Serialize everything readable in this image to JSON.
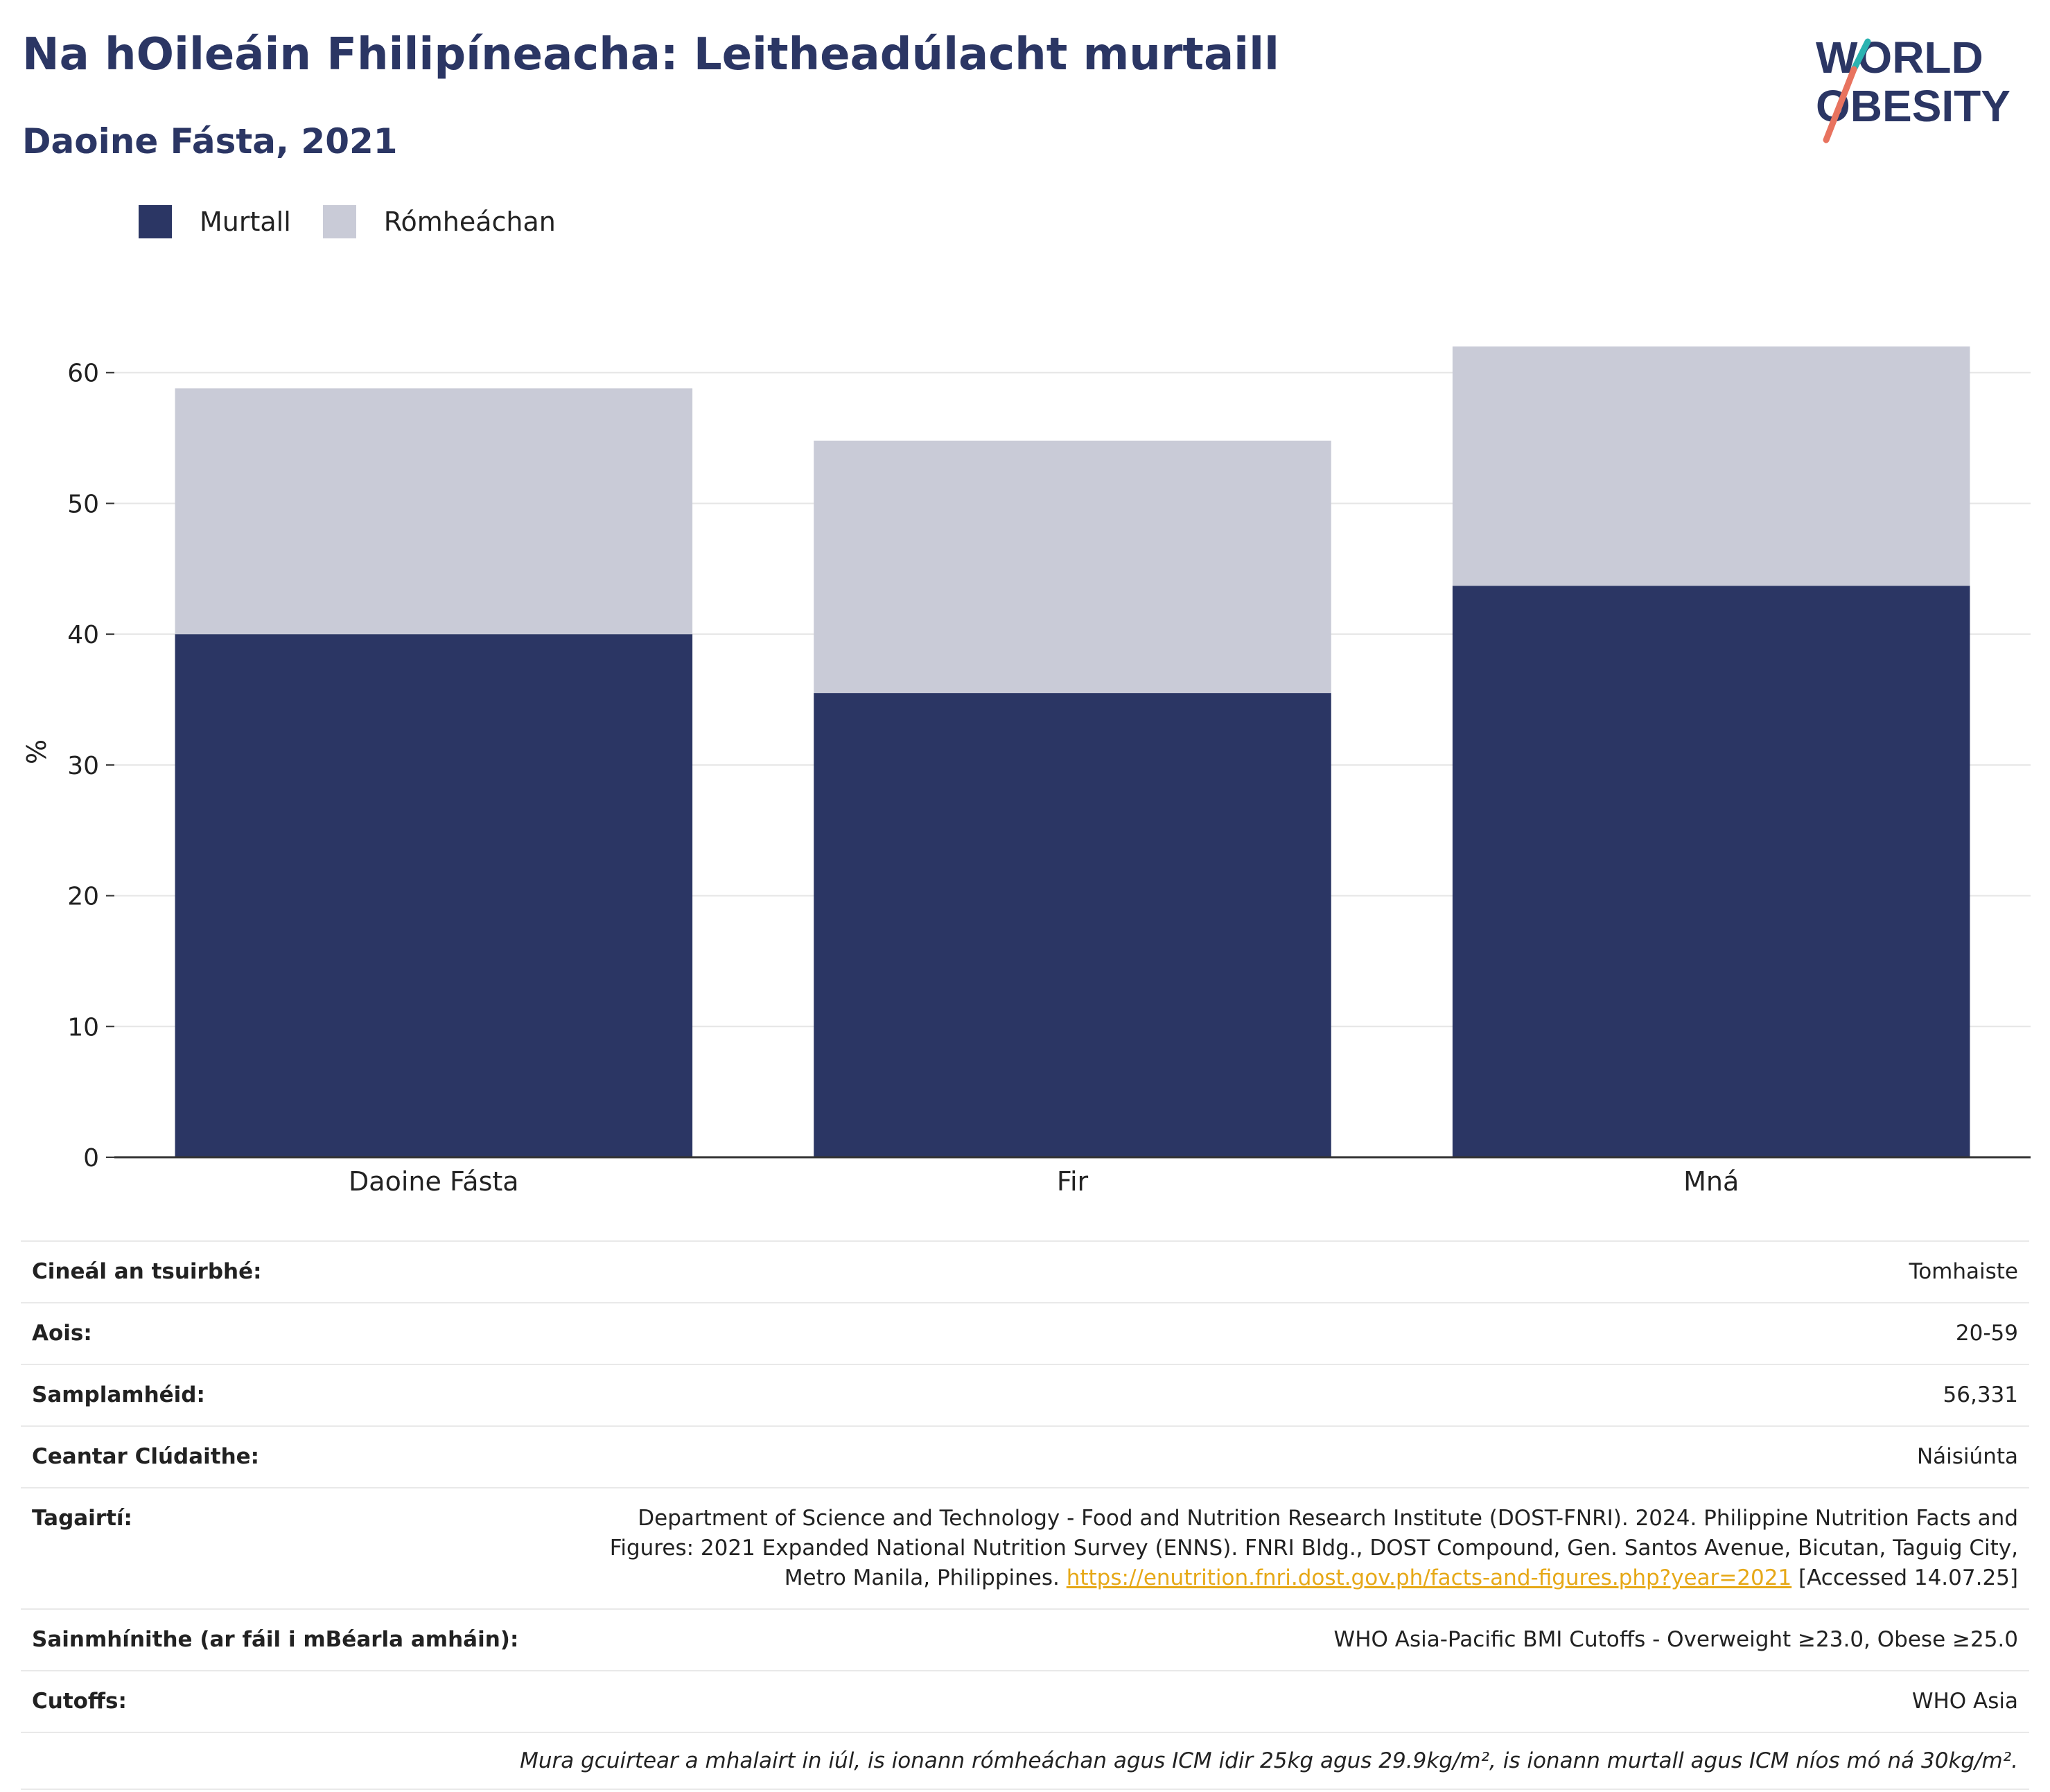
{
  "header": {
    "title": "Na hOileáin Fhilipíneacha: Leitheadúlacht murtaill",
    "subtitle": "Daoine Fásta, 2021"
  },
  "logo": {
    "line1": "WORLD",
    "line2": "OBESITY"
  },
  "colors": {
    "obese": "#2b3664",
    "overweight": "#c9cbd7",
    "title": "#2b3664",
    "link": "#e6a817"
  },
  "chart_data": {
    "type": "bar",
    "stacked": true,
    "categories": [
      "Daoine Fásta",
      "Fir",
      "Mná"
    ],
    "series": [
      {
        "name": "Murtall",
        "values": [
          40.0,
          35.5,
          43.7
        ]
      },
      {
        "name": "Rómheáchan",
        "values": [
          18.8,
          19.3,
          18.4
        ]
      }
    ],
    "ylabel": "%",
    "ylim": [
      0,
      62
    ],
    "yticks": [
      0,
      10,
      20,
      30,
      40,
      50,
      60
    ],
    "grid": true,
    "legend": "top-left"
  },
  "info": {
    "survey_type": {
      "label": "Cineál an tsuirbhé:",
      "value": "Tomhaiste"
    },
    "age": {
      "label": "Aois:",
      "value": "20-59"
    },
    "sample_size": {
      "label": "Samplamhéid:",
      "value": "56,331"
    },
    "area": {
      "label": "Ceantar Clúdaithe:",
      "value": "Náisiúnta"
    },
    "references": {
      "label": "Tagairtí:",
      "text": "Department of Science and Technology - Food and Nutrition Research Institute (DOST-FNRI). 2024. Philippine Nutrition Facts and Figures: 2021 Expanded National Nutrition Survey (ENNS). FNRI Bldg., DOST Compound, Gen. Santos Avenue, Bicutan, Taguig City, Metro Manila, Philippines.",
      "link": "https://enutrition.fnri.dost.gov.ph/facts-and-figures.php?year=2021",
      "accessed": "[Accessed 14.07.25]"
    },
    "definitions": {
      "label": "Sainmhínithe (ar fáil i mBéarla amháin):",
      "value": "WHO Asia-Pacific BMI Cutoffs - Overweight ≥23.0, Obese ≥25.0"
    },
    "cutoffs": {
      "label": "Cutoffs:",
      "value": "WHO Asia"
    },
    "note": "Mura gcuirtear a mhalairt in iúl, is ionann rómheáchan agus ICM idir 25kg agus 29.9kg/m², is ionann murtall agus ICM níos mó ná 30kg/m²."
  }
}
